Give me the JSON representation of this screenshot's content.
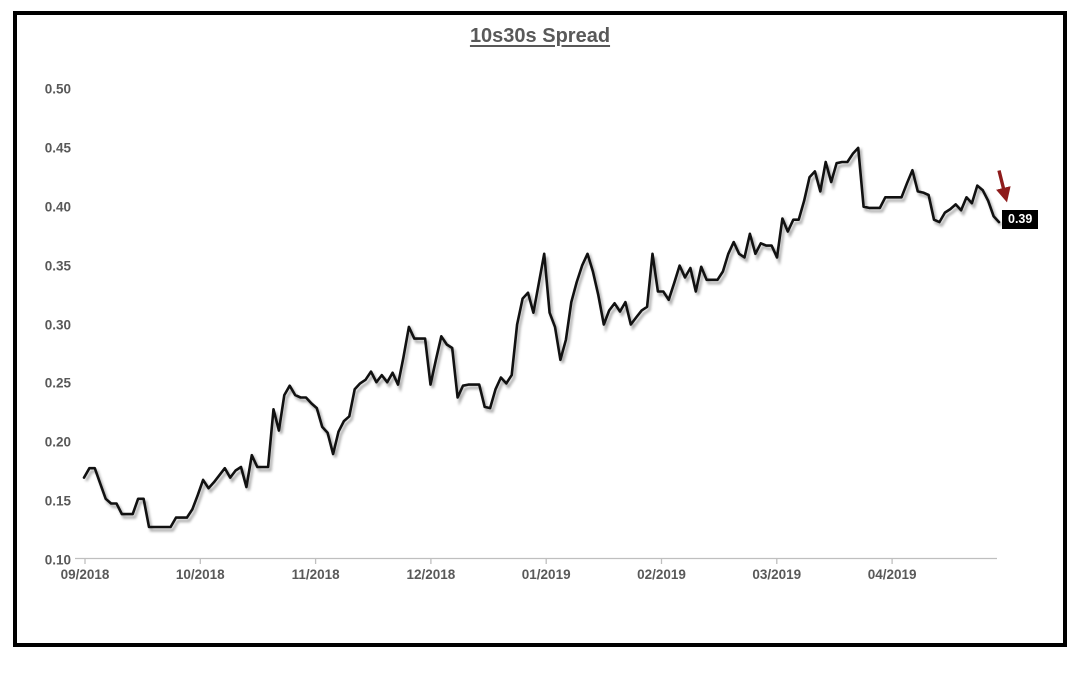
{
  "chart_data": {
    "type": "line",
    "title": "10s30s Spread",
    "xlabel": "",
    "ylabel": "",
    "grid": "off",
    "legend": "none",
    "ylim": [
      0.1,
      0.5
    ],
    "y_tick_labels": [
      "0.50",
      "0.45",
      "0.40",
      "0.35",
      "0.30",
      "0.25",
      "0.20",
      "0.15",
      "0.10"
    ],
    "x_tick_labels": [
      "09/2018",
      "10/2018",
      "11/2018",
      "12/2018",
      "01/2019",
      "02/2019",
      "03/2019",
      "04/2019"
    ],
    "end_label": "0.39",
    "line_color": "#111111",
    "arrow_color": "#8e1b1b",
    "label_bg": "#000000",
    "label_text_color": "#ffffff",
    "axis_color": "#bfbfbf",
    "text_color": "#595959",
    "values": [
      0.17,
      0.178,
      0.178,
      0.165,
      0.152,
      0.148,
      0.148,
      0.139,
      0.139,
      0.139,
      0.152,
      0.152,
      0.128,
      0.128,
      0.128,
      0.128,
      0.128,
      0.136,
      0.136,
      0.136,
      0.143,
      0.155,
      0.168,
      0.161,
      0.166,
      0.172,
      0.178,
      0.17,
      0.176,
      0.179,
      0.162,
      0.189,
      0.179,
      0.179,
      0.179,
      0.228,
      0.21,
      0.24,
      0.248,
      0.24,
      0.238,
      0.238,
      0.233,
      0.229,
      0.213,
      0.208,
      0.19,
      0.209,
      0.218,
      0.222,
      0.245,
      0.25,
      0.253,
      0.26,
      0.251,
      0.257,
      0.251,
      0.259,
      0.249,
      0.272,
      0.298,
      0.288,
      0.288,
      0.288,
      0.249,
      0.27,
      0.29,
      0.283,
      0.28,
      0.238,
      0.248,
      0.249,
      0.249,
      0.249,
      0.23,
      0.229,
      0.245,
      0.255,
      0.25,
      0.257,
      0.3,
      0.322,
      0.327,
      0.31,
      0.335,
      0.36,
      0.31,
      0.298,
      0.27,
      0.287,
      0.319,
      0.336,
      0.35,
      0.36,
      0.345,
      0.325,
      0.3,
      0.312,
      0.318,
      0.311,
      0.319,
      0.3,
      0.306,
      0.312,
      0.315,
      0.36,
      0.328,
      0.328,
      0.321,
      0.335,
      0.35,
      0.34,
      0.348,
      0.328,
      0.349,
      0.338,
      0.338,
      0.338,
      0.345,
      0.36,
      0.37,
      0.36,
      0.357,
      0.377,
      0.36,
      0.369,
      0.367,
      0.367,
      0.357,
      0.39,
      0.379,
      0.389,
      0.389,
      0.405,
      0.425,
      0.43,
      0.413,
      0.438,
      0.421,
      0.437,
      0.438,
      0.438,
      0.445,
      0.45,
      0.4,
      0.399,
      0.399,
      0.399,
      0.408,
      0.408,
      0.408,
      0.408,
      0.42,
      0.431,
      0.413,
      0.412,
      0.41,
      0.389,
      0.387,
      0.395,
      0.398,
      0.402,
      0.397,
      0.408,
      0.403,
      0.418,
      0.414,
      0.405,
      0.392,
      0.387
    ]
  }
}
